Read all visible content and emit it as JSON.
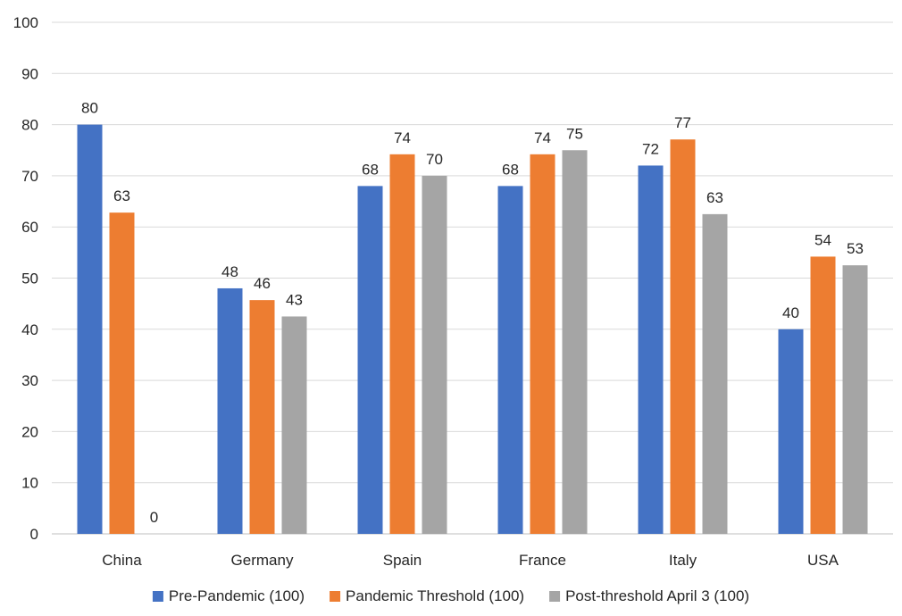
{
  "chart_data": {
    "type": "bar",
    "title": "",
    "xlabel": "",
    "ylabel": "",
    "ylim": [
      0,
      100
    ],
    "yticks": [
      0,
      10,
      20,
      30,
      40,
      50,
      60,
      70,
      80,
      90,
      100
    ],
    "grid": true,
    "legend_position": "bottom",
    "categories": [
      "China",
      "Germany",
      "Spain",
      "France",
      "Italy",
      "USA"
    ],
    "series": [
      {
        "name": "Pre-Pandemic (100)",
        "color": "#4472C4",
        "values": [
          80,
          48,
          68,
          68,
          72,
          40
        ],
        "labels": [
          "80",
          "48",
          "68",
          "68",
          "72",
          "40"
        ]
      },
      {
        "name": "Pandemic Threshold (100)",
        "color": "#ED7D31",
        "values": [
          62.8,
          45.7,
          74.2,
          74.2,
          77.1,
          54.2
        ],
        "labels": [
          "63",
          "46",
          "74",
          "74",
          "77",
          "54"
        ]
      },
      {
        "name": "Post-threshold April 3 (100)",
        "color": "#A5A5A5",
        "values": [
          0,
          42.5,
          70,
          75,
          62.5,
          52.5
        ],
        "labels": [
          "0",
          "43",
          "70",
          "75",
          "63",
          "53"
        ]
      }
    ]
  }
}
